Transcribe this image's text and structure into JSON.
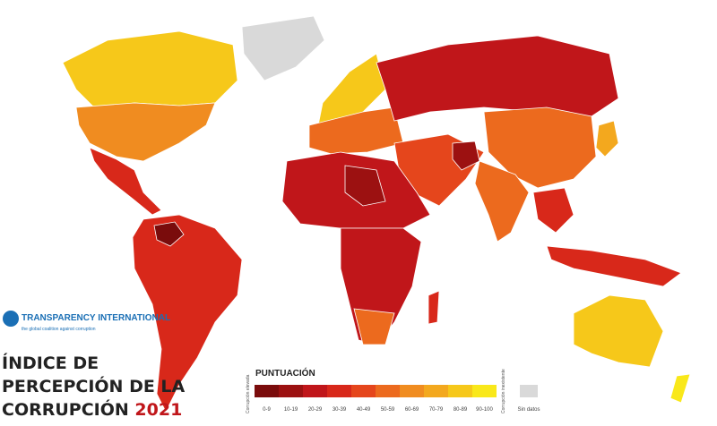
{
  "logo": {
    "name": "TRANSPARENCY INTERNATIONAL",
    "tagline": "the global coalition against corruption"
  },
  "title": {
    "line1": "ÍNDICE DE",
    "line2": "PERCEPCIÓN DE LA",
    "line3": "CORRUPCIÓN",
    "year": "2021"
  },
  "legend": {
    "heading": "PUNTUACIÓN",
    "low_label": "Corrupción elevada",
    "high_label": "Corrupción inexistente",
    "bins": [
      {
        "label": "0-9",
        "color": "#7a0c0c"
      },
      {
        "label": "10-19",
        "color": "#9c1111"
      },
      {
        "label": "20-29",
        "color": "#c0161a"
      },
      {
        "label": "30-39",
        "color": "#d8281a"
      },
      {
        "label": "40-49",
        "color": "#e5461c"
      },
      {
        "label": "50-59",
        "color": "#ec6a1e"
      },
      {
        "label": "60-69",
        "color": "#f08c20"
      },
      {
        "label": "70-79",
        "color": "#f3a81e"
      },
      {
        "label": "80-89",
        "color": "#f6c81a"
      },
      {
        "label": "90-100",
        "color": "#f9e81a"
      }
    ],
    "no_data": {
      "label": "Sin datos",
      "color": "#d9d9d9"
    }
  }
}
